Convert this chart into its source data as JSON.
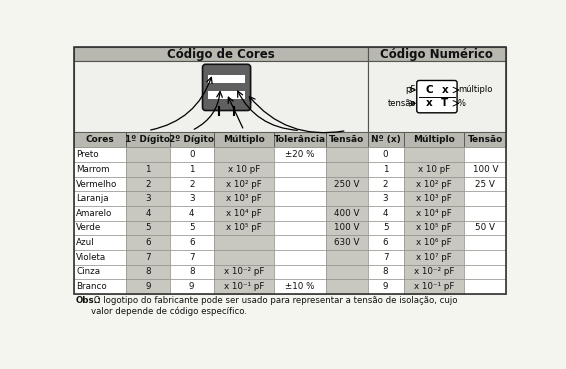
{
  "title_left": "Código de Cores",
  "title_right": "Código Numérico",
  "col_headers": [
    "Cores",
    "1º Dígito",
    "2º Dígito",
    "Múltiplo",
    "Tolerância",
    "Tensão",
    "Nº (x)",
    "Múltiplo",
    "Tensão"
  ],
  "rows": [
    [
      "Preto",
      "",
      "0",
      "",
      "±20 %",
      "",
      "0",
      "",
      ""
    ],
    [
      "Marrom",
      "1",
      "1",
      "x 10 pF",
      "",
      "",
      "1",
      "x 10 pF",
      "100 V"
    ],
    [
      "Vermelho",
      "2",
      "2",
      "x 10² pF",
      "",
      "250 V",
      "2",
      "x 10² pF",
      "25 V"
    ],
    [
      "Laranja",
      "3",
      "3",
      "x 10³ pF",
      "",
      "",
      "3",
      "x 10³ pF",
      ""
    ],
    [
      "Amarelo",
      "4",
      "4",
      "x 10⁴ pF",
      "",
      "400 V",
      "4",
      "x 10⁴ pF",
      ""
    ],
    [
      "Verde",
      "5",
      "5",
      "x 10⁵ pF",
      "",
      "100 V",
      "5",
      "x 10⁵ pF",
      "50 V"
    ],
    [
      "Azul",
      "6",
      "6",
      "",
      "",
      "630 V",
      "6",
      "x 10⁶ pF",
      ""
    ],
    [
      "Violeta",
      "7",
      "7",
      "",
      "",
      "",
      "7",
      "x 10⁷ pF",
      ""
    ],
    [
      "Cinza",
      "8",
      "8",
      "x 10⁻² pF",
      "",
      "",
      "8",
      "x 10⁻² pF",
      ""
    ],
    [
      "Branco",
      "9",
      "9",
      "x 10⁻¹ pF",
      "±10 %",
      "",
      "9",
      "x 10⁻¹ pF",
      ""
    ]
  ],
  "obs_bold": "Obs.:",
  "obs_text": " O logotipo do fabricante pode ser usado para representar a tensão de isolação, cujo\nvalor depende de código específico.",
  "bg_color": "#f5f5f0",
  "header_bg": "#b8b8b0",
  "cell_shaded": "#c8c8c0",
  "cell_white": "#ffffff",
  "illus_bg": "#f0f0ec"
}
